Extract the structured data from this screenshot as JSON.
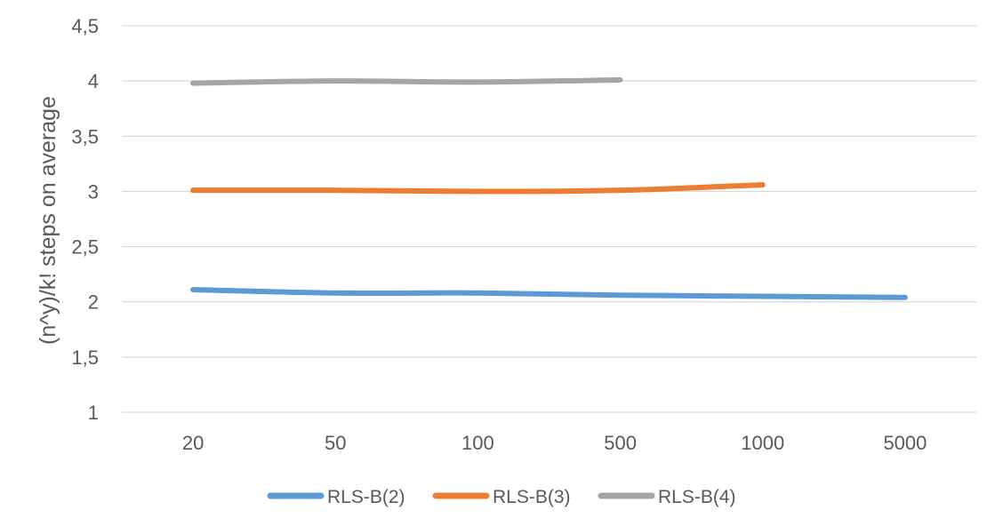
{
  "chart_data": {
    "type": "line",
    "title": "",
    "xlabel": "",
    "ylabel": "(n^y)/k! steps on average",
    "categories": [
      "20",
      "50",
      "100",
      "500",
      "1000",
      "5000"
    ],
    "ylim": [
      1,
      4.5
    ],
    "yticks": [
      "1",
      "1,5",
      "2",
      "2,5",
      "3",
      "3,5",
      "4",
      "4,5"
    ],
    "grid": true,
    "legend_position": "bottom",
    "series": [
      {
        "name": "RLS-B(2)",
        "color": "#5b9bd5",
        "values": [
          2.11,
          2.08,
          2.08,
          2.06,
          2.05,
          2.04
        ]
      },
      {
        "name": "RLS-B(3)",
        "color": "#ed7d31",
        "values": [
          3.01,
          3.01,
          3.0,
          3.01,
          3.06,
          null
        ]
      },
      {
        "name": "RLS-B(4)",
        "color": "#a5a5a5",
        "values": [
          3.98,
          4.0,
          3.99,
          4.01,
          null,
          null
        ]
      }
    ]
  }
}
